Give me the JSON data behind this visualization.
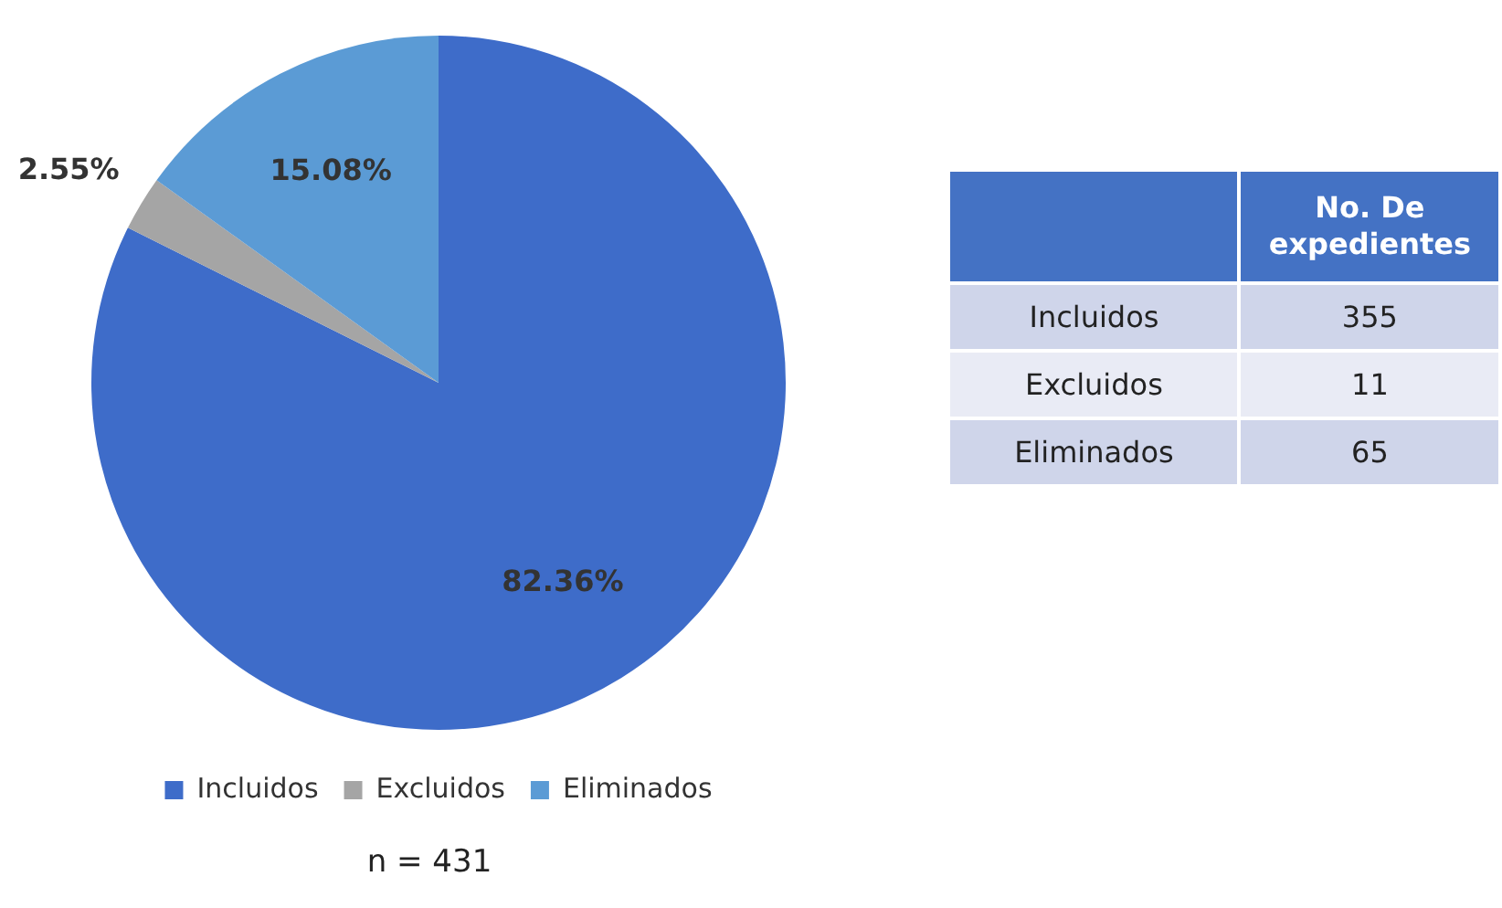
{
  "chart_data": {
    "type": "pie",
    "categories": [
      "Incluidos",
      "Excluidos",
      "Eliminados"
    ],
    "values": [
      82.36,
      2.55,
      15.08
    ],
    "value_labels": [
      "82.36%",
      "2.55%",
      "15.08%"
    ],
    "colors": [
      "#3e6cc9",
      "#a5a5a5",
      "#5b9bd5"
    ],
    "legend": "bottom",
    "annotations": [
      "No. De expedientes",
      "355",
      "11",
      "65",
      "n = 431"
    ]
  }
}
